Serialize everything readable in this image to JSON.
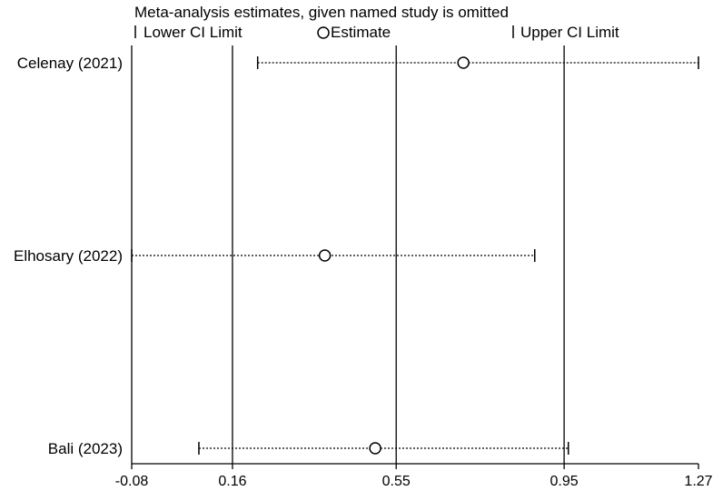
{
  "chart_data": {
    "type": "forest",
    "title": "Meta-analysis estimates, given named study is omitted",
    "legend": {
      "lower": "Lower CI Limit",
      "estimate": "Estimate",
      "upper": "Upper CI Limit"
    },
    "xlim": [
      -0.08,
      1.27
    ],
    "ticks": [
      -0.08,
      0.16,
      0.55,
      0.95,
      1.27
    ],
    "tick_labels": [
      "-0.08",
      "0.16",
      "0.55",
      "0.95",
      "1.27"
    ],
    "reference_lines": [
      0.16,
      0.55,
      0.95
    ],
    "studies": [
      {
        "name": "Celenay (2021)",
        "lower": 0.22,
        "estimate": 0.71,
        "upper": 1.27
      },
      {
        "name": "Elhosary (2022)",
        "lower": -0.08,
        "estimate": 0.38,
        "upper": 0.88
      },
      {
        "name": "Bali (2023)",
        "lower": 0.08,
        "estimate": 0.5,
        "upper": 0.96
      }
    ],
    "grid": false
  }
}
